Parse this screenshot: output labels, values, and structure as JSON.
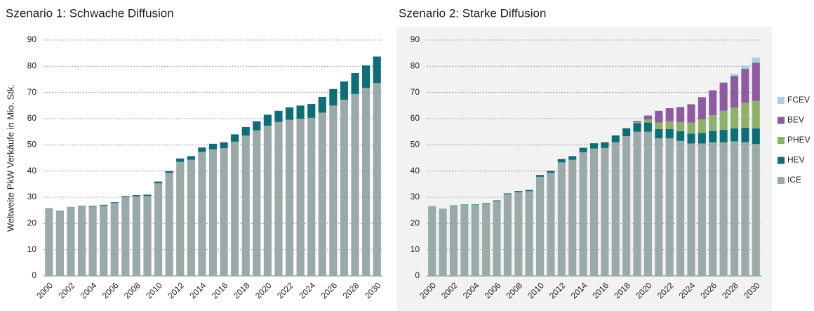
{
  "chart_data": [
    {
      "type": "bar",
      "stacked": true,
      "title": "Szenario 1: Schwache Diffusion",
      "ylabel": "Weltweite PkW Verkäufe in Mio. Stk.",
      "categories": [
        "2000",
        null,
        "2002",
        null,
        "2004",
        null,
        "2006",
        null,
        "2008",
        null,
        "2010",
        null,
        "2012",
        null,
        "2014",
        null,
        "2016",
        null,
        "2018",
        null,
        "2020",
        null,
        "2022",
        null,
        "2024",
        null,
        "2026",
        null,
        "2028",
        null,
        "2030"
      ],
      "series": [
        {
          "color": "#9aaaa8",
          "values": [
            25.7,
            24.8,
            26.2,
            26.7,
            26.6,
            26.8,
            27.8,
            30.2,
            30.4,
            30.5,
            35.3,
            39.3,
            43.5,
            44.3,
            47.3,
            48.3,
            48.7,
            51.2,
            53.5,
            55.5,
            57.3,
            58.7,
            59.6,
            60.0,
            60.3,
            62.3,
            65.0,
            67.2,
            69.4,
            71.7,
            73.6
          ]
        },
        {
          "color": "#0d6e78",
          "values": [
            0.1,
            0.1,
            0.1,
            0.1,
            0.2,
            0.3,
            0.3,
            0.3,
            0.4,
            0.5,
            0.7,
            0.7,
            1.3,
            1.4,
            1.7,
            2.1,
            2.3,
            2.8,
            3.3,
            3.5,
            4.2,
            4.3,
            4.7,
            5.0,
            5.3,
            6.0,
            6.3,
            7.0,
            8.0,
            8.6,
            10.1
          ]
        }
      ],
      "ylim": [
        0,
        90
      ],
      "yticks": [
        0,
        10,
        20,
        30,
        40,
        50,
        60,
        70,
        80,
        90
      ],
      "grid": true,
      "background": "#ffffff"
    },
    {
      "type": "bar",
      "stacked": true,
      "title": "Szenario 2: Starke Diffusion",
      "categories": [
        "2000",
        null,
        "2002",
        null,
        "2004",
        null,
        "2006",
        null,
        "2008",
        null,
        "2010",
        null,
        "2012",
        null,
        "2014",
        null,
        "2016",
        null,
        "2018",
        null,
        "2020",
        null,
        "2022",
        null,
        "2024",
        null,
        "2026",
        null,
        "2028",
        null,
        "2030"
      ],
      "series": [
        {
          "name": "ICE",
          "color": "#9aaaa8",
          "values": [
            26.5,
            25.5,
            26.8,
            27.2,
            27.1,
            27.4,
            28.5,
            31.2,
            32.0,
            32.3,
            37.8,
            39.3,
            43.3,
            44.3,
            47.2,
            48.6,
            48.8,
            51.0,
            53.3,
            55.0,
            55.0,
            52.5,
            52.5,
            51.5,
            50.5,
            50.5,
            51.0,
            51.0,
            51.3,
            51.0,
            50.3
          ]
        },
        {
          "name": "HEV",
          "color": "#0d6e78",
          "values": [
            0.1,
            0.1,
            0.1,
            0.1,
            0.2,
            0.3,
            0.3,
            0.3,
            0.4,
            0.5,
            0.7,
            0.8,
            1.3,
            1.4,
            1.7,
            2.0,
            2.2,
            2.6,
            3.0,
            3.3,
            3.5,
            3.5,
            3.5,
            3.7,
            3.8,
            4.0,
            4.3,
            4.7,
            5.0,
            5.5,
            6.0
          ]
        },
        {
          "name": "PHEV",
          "color": "#8fb06a",
          "values": [
            0,
            0,
            0,
            0,
            0,
            0,
            0,
            0,
            0,
            0,
            0,
            0,
            0,
            0,
            0,
            0,
            0,
            0,
            0,
            0.3,
            1.2,
            2.5,
            3.0,
            3.5,
            4.2,
            5.2,
            6.0,
            7.3,
            8.0,
            9.5,
            10.5
          ]
        },
        {
          "name": "BEV",
          "color": "#8e5aa0",
          "values": [
            0,
            0,
            0,
            0,
            0,
            0,
            0,
            0,
            0,
            0,
            0,
            0,
            0,
            0,
            0,
            0,
            0,
            0,
            0.1,
            0.5,
            1.5,
            4.5,
            5.0,
            5.7,
            7.0,
            8.5,
            9.5,
            10.7,
            12.0,
            13.0,
            14.5
          ]
        },
        {
          "name": "FCEV",
          "color": "#a7cfe0",
          "values": [
            0,
            0,
            0,
            0,
            0,
            0,
            0,
            0,
            0,
            0,
            0,
            0,
            0,
            0,
            0,
            0,
            0,
            0,
            0,
            0,
            0,
            0,
            0,
            0,
            0,
            0,
            0,
            0.3,
            0.8,
            1.2,
            2.0
          ]
        }
      ],
      "ylim": [
        0,
        90
      ],
      "yticks": [
        0,
        10,
        20,
        30,
        40,
        50,
        60,
        70,
        80,
        90
      ],
      "grid": true,
      "background": "#f2f2f2",
      "legend": "right"
    }
  ]
}
